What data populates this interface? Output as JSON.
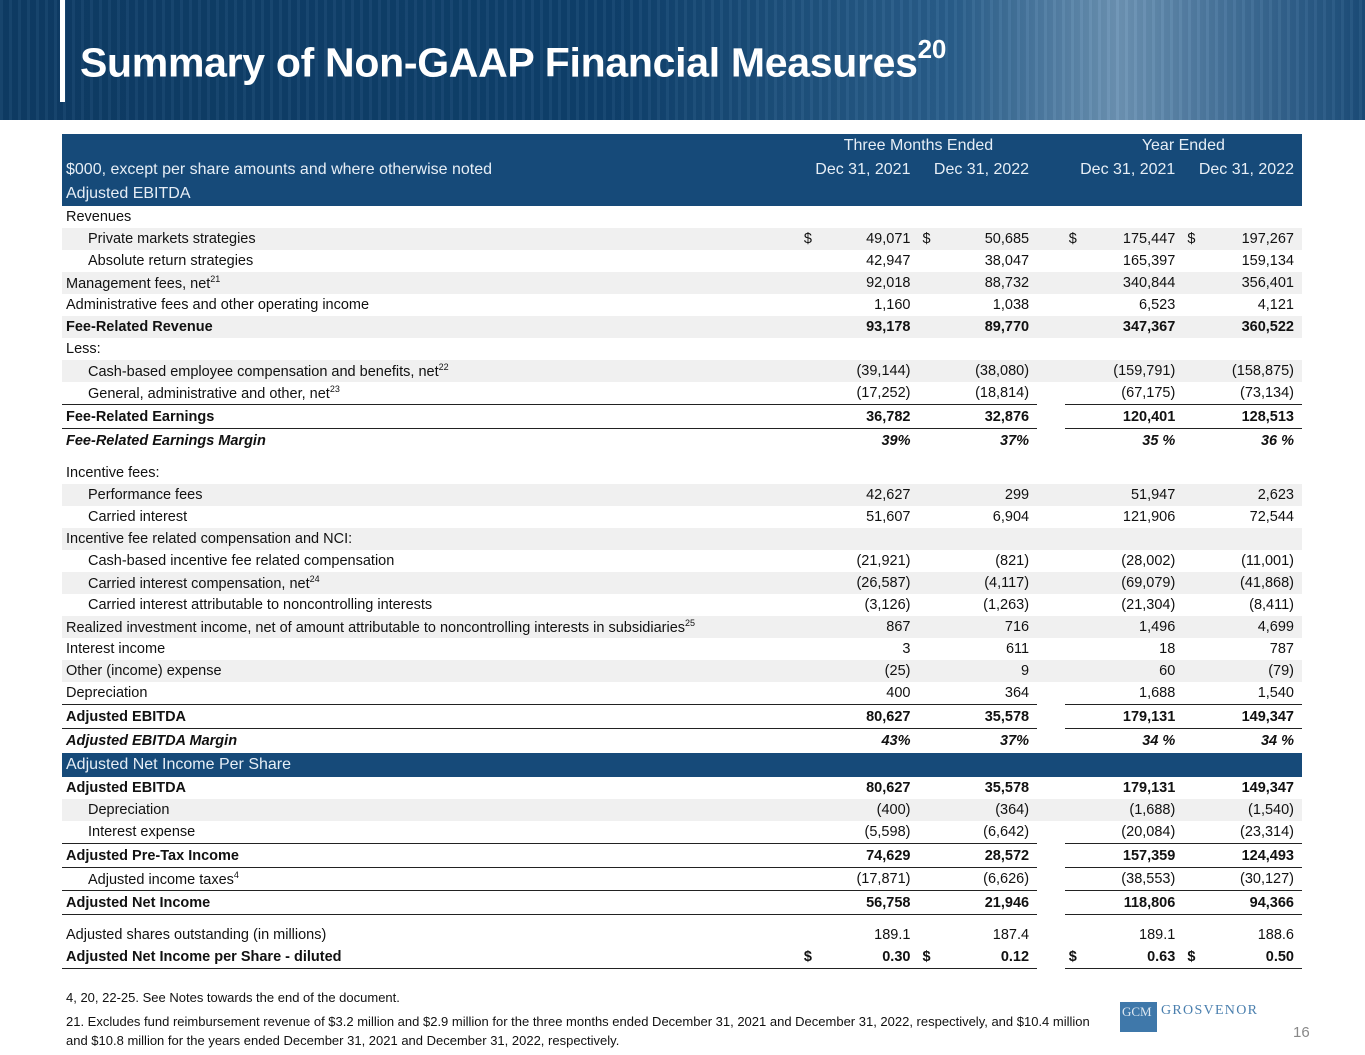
{
  "title": "Summary of Non-GAAP Financial Measures",
  "title_sup": "20",
  "header": {
    "group1": "Three Months Ended",
    "group2": "Year Ended",
    "units": "$000, except per share amounts and where otherwise noted",
    "cols": [
      "Dec 31, 2021",
      "Dec 31, 2022",
      "Dec 31, 2021",
      "Dec 31, 2022"
    ],
    "section1": "Adjusted EBITDA",
    "section2": "Adjusted Net Income Per Share"
  },
  "rows1": [
    {
      "label": "Revenues",
      "kind": ""
    },
    {
      "label": "Private markets strategies",
      "ind": true,
      "shade": true,
      "cur": true,
      "v": [
        "49,071",
        "50,685",
        "175,447",
        "197,267"
      ]
    },
    {
      "label": "Absolute return strategies",
      "ind": true,
      "v": [
        "42,947",
        "38,047",
        "165,397",
        "159,134"
      ]
    },
    {
      "label": "Management fees, net",
      "sup": "21",
      "shade": true,
      "v": [
        "92,018",
        "88,732",
        "340,844",
        "356,401"
      ]
    },
    {
      "label": "Administrative fees and other operating income",
      "v": [
        "1,160",
        "1,038",
        "6,523",
        "4,121"
      ]
    },
    {
      "label": "Fee-Related Revenue",
      "kind": "bold",
      "shade": true,
      "v": [
        "93,178",
        "89,770",
        "347,367",
        "360,522"
      ]
    },
    {
      "label": "Less:"
    },
    {
      "label": "Cash-based employee compensation and benefits, net",
      "sup": "22",
      "ind": true,
      "shade": true,
      "v": [
        "(39,144)",
        "(38,080)",
        "(159,791)",
        "(158,875)"
      ]
    },
    {
      "label": "General, administrative and other, net",
      "sup": "23",
      "ind": true,
      "v": [
        "(17,252)",
        "(18,814)",
        "(67,175)",
        "(73,134)"
      ]
    },
    {
      "label": "Fee-Related Earnings",
      "kind": "bold total",
      "v": [
        "36,782",
        "32,876",
        "120,401",
        "128,513"
      ]
    },
    {
      "label": "Fee-Related Earnings Margin",
      "kind": "ital margin",
      "v": [
        "39%",
        "37%",
        "35 %",
        "36 %"
      ]
    },
    {
      "label": "Incentive fees:",
      "kind": "spaced"
    },
    {
      "label": "Performance fees",
      "ind": true,
      "shade": true,
      "v": [
        "42,627",
        "299",
        "51,947",
        "2,623"
      ]
    },
    {
      "label": "Carried interest",
      "ind": true,
      "v": [
        "51,607",
        "6,904",
        "121,906",
        "72,544"
      ]
    },
    {
      "label": "Incentive fee related compensation and NCI:",
      "shade": true
    },
    {
      "label": "Cash-based incentive fee related compensation",
      "ind": true,
      "v": [
        "(21,921)",
        "(821)",
        "(28,002)",
        "(11,001)"
      ]
    },
    {
      "label": "Carried interest compensation, net",
      "sup": "24",
      "ind": true,
      "shade": true,
      "v": [
        "(26,587)",
        "(4,117)",
        "(69,079)",
        "(41,868)"
      ]
    },
    {
      "label": "Carried interest attributable to noncontrolling interests",
      "ind": true,
      "v": [
        "(3,126)",
        "(1,263)",
        "(21,304)",
        "(8,411)"
      ]
    },
    {
      "label": "Realized investment income, net of amount attributable to noncontrolling interests in subsidiaries",
      "sup": "25",
      "shade": true,
      "v": [
        "867",
        "716",
        "1,496",
        "4,699"
      ]
    },
    {
      "label": "Interest income",
      "v": [
        "3",
        "611",
        "18",
        "787"
      ]
    },
    {
      "label": "Other (income) expense",
      "shade": true,
      "v": [
        "(25)",
        "9",
        "60",
        "(79)"
      ]
    },
    {
      "label": "Depreciation",
      "v": [
        "400",
        "364",
        "1,688",
        "1,540"
      ]
    },
    {
      "label": "Adjusted EBITDA",
      "kind": "bold total",
      "v": [
        "80,627",
        "35,578",
        "179,131",
        "149,347"
      ]
    },
    {
      "label": "Adjusted EBITDA Margin",
      "kind": "ital margin",
      "v": [
        "43%",
        "37%",
        "34 %",
        "34 %"
      ]
    }
  ],
  "rows2": [
    {
      "label": "Adjusted EBITDA",
      "kind": "bold",
      "v": [
        "80,627",
        "35,578",
        "179,131",
        "149,347"
      ]
    },
    {
      "label": "Depreciation",
      "ind": true,
      "shade": true,
      "v": [
        "(400)",
        "(364)",
        "(1,688)",
        "(1,540)"
      ]
    },
    {
      "label": "Interest expense",
      "ind": true,
      "v": [
        "(5,598)",
        "(6,642)",
        "(20,084)",
        "(23,314)"
      ]
    },
    {
      "label": "Adjusted Pre-Tax Income",
      "kind": "bold total",
      "v": [
        "74,629",
        "28,572",
        "157,359",
        "124,493"
      ]
    },
    {
      "label": "Adjusted income taxes",
      "sup": "4",
      "ind": true,
      "v": [
        "(17,871)",
        "(6,626)",
        "(38,553)",
        "(30,127)"
      ]
    },
    {
      "label": "Adjusted Net Income",
      "kind": "bold total",
      "v": [
        "56,758",
        "21,946",
        "118,806",
        "94,366"
      ]
    },
    {
      "label": "Adjusted shares outstanding (in millions)",
      "kind": "spaced",
      "v": [
        "189.1",
        "187.4",
        "189.1",
        "188.6"
      ]
    },
    {
      "label": "Adjusted Net Income per Share - diluted",
      "kind": "bold total",
      "cur": true,
      "v": [
        "0.30",
        "0.12",
        "0.63",
        "0.50"
      ]
    }
  ],
  "currency_symbol": "$",
  "notes": [
    "4, 20, 22-25.   See Notes towards the end of the document.",
    "21. Excludes fund reimbursement revenue of $3.2 million and $2.9 million for the three months ended December 31, 2021 and December 31, 2022, respectively, and $10.4 million and $10.8 million for the years ended December 31, 2021 and December 31, 2022, respectively."
  ],
  "logo": {
    "mark": "GCM",
    "word": "GROSVENOR"
  },
  "page_number": "16"
}
